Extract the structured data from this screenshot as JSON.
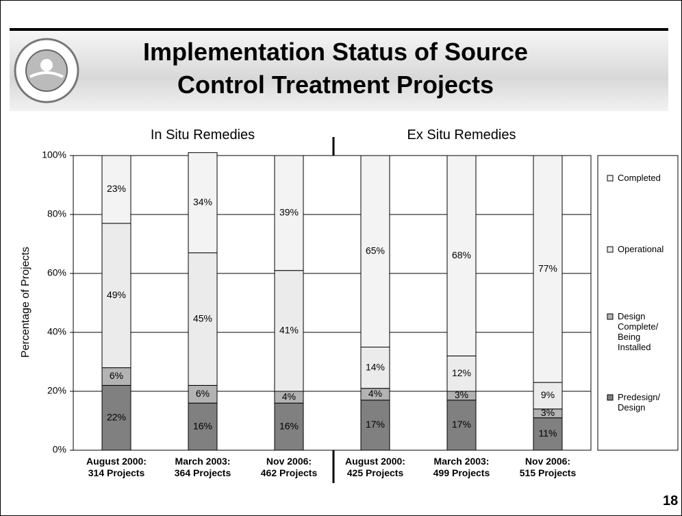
{
  "header": {
    "title": "Implementation Status of Source\nControl Treatment Projects"
  },
  "chart_data": {
    "type": "stacked_bar",
    "group_labels": [
      "In Situ Remedies",
      "Ex Situ Remedies"
    ],
    "ylabel": "Percentage of Projects",
    "categories": [
      "August 2000:\n314 Projects",
      "March 2003:\n364 Projects",
      "Nov 2006:\n462 Projects",
      "August 2000:\n425 Projects",
      "March 2003:\n499 Projects",
      "Nov 2006:\n515 Projects"
    ],
    "series": [
      {
        "name": "Predesign/\nDesign",
        "color": "#808080",
        "values": [
          22,
          16,
          16,
          17,
          17,
          11
        ],
        "value_labels": [
          "22%",
          "16%",
          "16%",
          "17%",
          "17%",
          "11%"
        ]
      },
      {
        "name": "Design\nComplete/\nBeing\nInstalled",
        "color": "#b3b3b3",
        "values": [
          6,
          6,
          4,
          4,
          3,
          3
        ],
        "value_labels": [
          "6%",
          "6%",
          "4%",
          "4%",
          "3%",
          "3%"
        ]
      },
      {
        "name": "Operational",
        "color": "#ebebeb",
        "values": [
          49,
          45,
          41,
          14,
          12,
          9
        ],
        "value_labels": [
          "49%",
          "45%",
          "41%",
          "14%",
          "12%",
          "9%"
        ]
      },
      {
        "name": "Completed",
        "color": "#f3f3f3",
        "values": [
          23,
          34,
          39,
          65,
          68,
          77
        ],
        "value_labels": [
          "23%",
          "34%",
          "39%",
          "65%",
          "68%",
          "77%"
        ]
      }
    ],
    "ylim": [
      0,
      100
    ],
    "yticks": [
      {
        "value": 0,
        "label": "0%"
      },
      {
        "value": 20,
        "label": "20%"
      },
      {
        "value": 40,
        "label": "40%"
      },
      {
        "value": 60,
        "label": "60%"
      },
      {
        "value": 80,
        "label": "80%"
      },
      {
        "value": 100,
        "label": "100%"
      }
    ],
    "grid": true
  },
  "footer": {
    "page_number": "18"
  }
}
